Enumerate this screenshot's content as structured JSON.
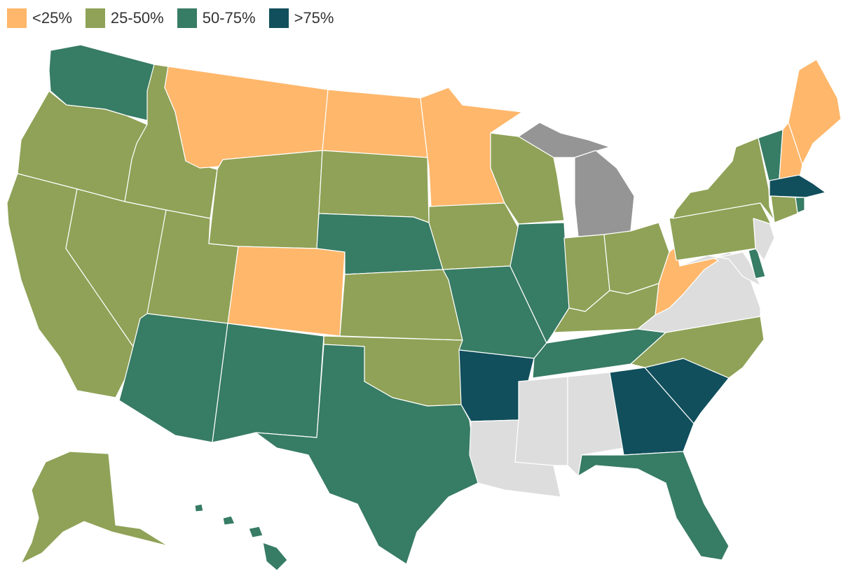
{
  "legend": {
    "items": [
      {
        "label": "<25%",
        "color": "#FFB76B"
      },
      {
        "label": "25-50%",
        "color": "#8FA257"
      },
      {
        "label": "50-75%",
        "color": "#377C64"
      },
      {
        "label": ">75%",
        "color": "#114F5C"
      }
    ]
  },
  "colors": {
    "no_data": "#DDDDDD",
    "other": "#959595"
  },
  "states": [
    {
      "name": "Washington",
      "category": "50-75%"
    },
    {
      "name": "Oregon",
      "category": "25-50%"
    },
    {
      "name": "California",
      "category": "25-50%"
    },
    {
      "name": "Idaho",
      "category": "25-50%"
    },
    {
      "name": "Nevada",
      "category": "25-50%"
    },
    {
      "name": "Utah",
      "category": "25-50%"
    },
    {
      "name": "Arizona",
      "category": "50-75%"
    },
    {
      "name": "Montana",
      "category": "<25%"
    },
    {
      "name": "Wyoming",
      "category": "25-50%"
    },
    {
      "name": "Colorado",
      "category": "<25%"
    },
    {
      "name": "New Mexico",
      "category": "50-75%"
    },
    {
      "name": "North Dakota",
      "category": "<25%"
    },
    {
      "name": "South Dakota",
      "category": "25-50%"
    },
    {
      "name": "Nebraska",
      "category": "50-75%"
    },
    {
      "name": "Kansas",
      "category": "25-50%"
    },
    {
      "name": "Oklahoma",
      "category": "25-50%"
    },
    {
      "name": "Texas",
      "category": "50-75%"
    },
    {
      "name": "Minnesota",
      "category": "<25%"
    },
    {
      "name": "Iowa",
      "category": "25-50%"
    },
    {
      "name": "Missouri",
      "category": "50-75%"
    },
    {
      "name": "Arkansas",
      "category": ">75%"
    },
    {
      "name": "Louisiana",
      "category": "no-data"
    },
    {
      "name": "Wisconsin",
      "category": "25-50%"
    },
    {
      "name": "Illinois",
      "category": "50-75%"
    },
    {
      "name": "Michigan",
      "category": "other"
    },
    {
      "name": "Indiana",
      "category": "25-50%"
    },
    {
      "name": "Ohio",
      "category": "25-50%"
    },
    {
      "name": "Kentucky",
      "category": "25-50%"
    },
    {
      "name": "Tennessee",
      "category": "50-75%"
    },
    {
      "name": "Mississippi",
      "category": "no-data"
    },
    {
      "name": "Alabama",
      "category": "no-data"
    },
    {
      "name": "Georgia",
      "category": ">75%"
    },
    {
      "name": "Florida",
      "category": "50-75%"
    },
    {
      "name": "South Carolina",
      "category": ">75%"
    },
    {
      "name": "North Carolina",
      "category": "25-50%"
    },
    {
      "name": "Virginia",
      "category": "no-data"
    },
    {
      "name": "West Virginia",
      "category": "<25%"
    },
    {
      "name": "Maryland",
      "category": "no-data"
    },
    {
      "name": "Delaware",
      "category": "50-75%"
    },
    {
      "name": "New Jersey",
      "category": "no-data"
    },
    {
      "name": "Pennsylvania",
      "category": "25-50%"
    },
    {
      "name": "New York",
      "category": "25-50%"
    },
    {
      "name": "Vermont",
      "category": "50-75%"
    },
    {
      "name": "New Hampshire",
      "category": "<25%"
    },
    {
      "name": "Maine",
      "category": "<25%"
    },
    {
      "name": "Massachusetts",
      "category": ">75%"
    },
    {
      "name": "Connecticut",
      "category": "25-50%"
    },
    {
      "name": "Rhode Island",
      "category": "50-75%"
    },
    {
      "name": "Alaska",
      "category": "25-50%"
    },
    {
      "name": "Hawaii",
      "category": "50-75%"
    }
  ]
}
